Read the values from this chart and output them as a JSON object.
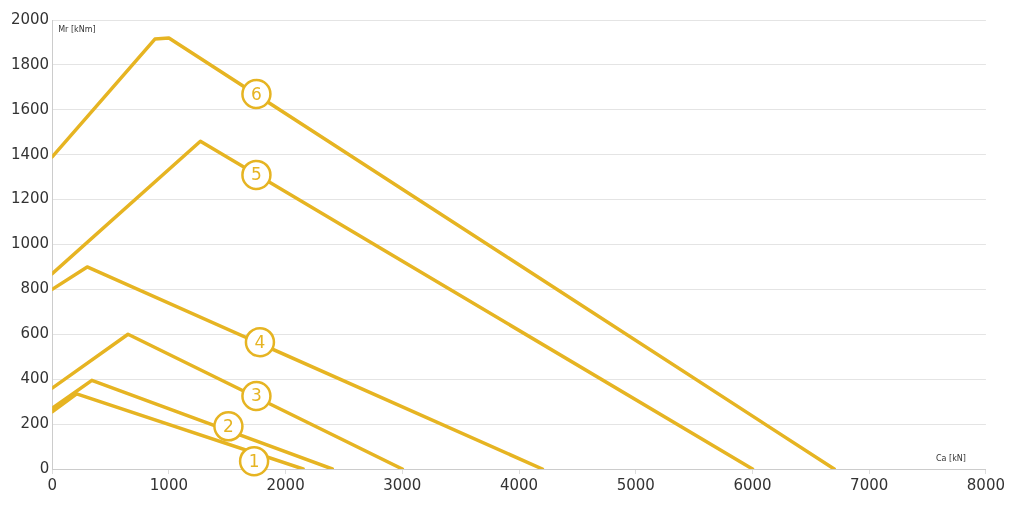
{
  "chart_data": {
    "type": "line",
    "xlabel": "Ca [kN]",
    "ylabel": "Mr [kNm]",
    "xlim": [
      0,
      8000
    ],
    "xticks": [
      0,
      1000,
      2000,
      3000,
      4000,
      5000,
      6000,
      7000,
      8000
    ],
    "ylim": [
      0,
      2000
    ],
    "yticks": [
      0,
      200,
      400,
      600,
      800,
      1000,
      1200,
      1400,
      1600,
      1800,
      2000
    ],
    "grid": "y",
    "legend": false,
    "marker": "none",
    "line_style": "solid",
    "series": [
      {
        "color": "#e6b422",
        "x": [
          0,
          210,
          2150
        ],
        "values": [
          255,
          335,
          0
        ]
      },
      {
        "color": "#e6b422",
        "x": [
          0,
          340,
          2400
        ],
        "values": [
          270,
          395,
          0
        ]
      },
      {
        "color": "#e6b422",
        "x": [
          0,
          650,
          3000
        ],
        "values": [
          360,
          600,
          0
        ]
      },
      {
        "color": "#e6b422",
        "x": [
          0,
          300,
          4200
        ],
        "values": [
          800,
          900,
          0
        ]
      },
      {
        "color": "#e6b422",
        "x": [
          0,
          1270,
          6000
        ],
        "values": [
          870,
          1460,
          0
        ]
      },
      {
        "color": "#e6b422",
        "x": [
          0,
          880,
          1000,
          6700
        ],
        "values": [
          1390,
          1915,
          1920,
          0
        ]
      }
    ],
    "annotations": [
      {
        "text": "1",
        "x": 1730,
        "y": 35
      },
      {
        "text": "2",
        "x": 1510,
        "y": 190
      },
      {
        "text": "3",
        "x": 1750,
        "y": 325
      },
      {
        "text": "4",
        "x": 1780,
        "y": 565
      },
      {
        "text": "5",
        "x": 1750,
        "y": 1310
      },
      {
        "text": "6",
        "x": 1750,
        "y": 1670
      }
    ]
  }
}
